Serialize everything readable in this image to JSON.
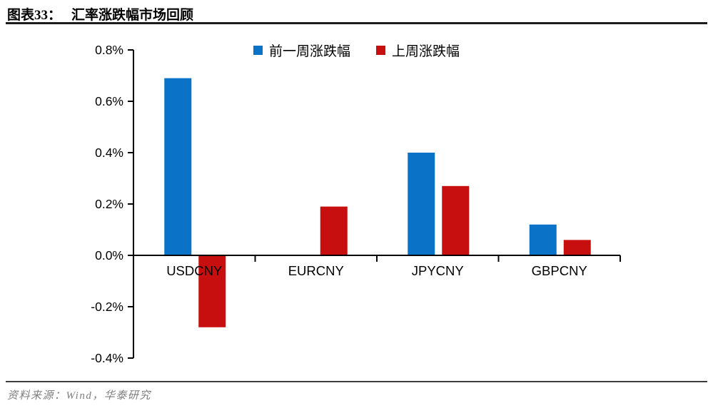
{
  "title": {
    "prefix": "图表33：",
    "text": "汇率涨跌幅市场回顾"
  },
  "footer": {
    "source": "资料来源：Wind，华泰研究"
  },
  "colors": {
    "series_blue": "#0a73c8",
    "series_red": "#c80f0f",
    "axis": "#000000",
    "title_rule": "#1c1c1c",
    "footer_rule": "#3d3d3d",
    "footer_text": "#7e7e7e"
  },
  "chart_data": {
    "type": "bar",
    "title": "汇率涨跌幅市场回顾",
    "categories": [
      "USDCNY",
      "EURCNY",
      "JPYCNY",
      "GBPCNY"
    ],
    "series": [
      {
        "name": "前一周涨跌幅",
        "color": "#0a73c8",
        "values": [
          0.69,
          0.0,
          0.4,
          0.12
        ]
      },
      {
        "name": "上周涨跌幅",
        "color": "#c80f0f",
        "values": [
          -0.28,
          0.19,
          0.27,
          0.06
        ]
      }
    ],
    "unit": "%",
    "xlabel": "",
    "ylabel": "",
    "ylim": [
      -0.4,
      0.8
    ],
    "y_ticks": [
      0.8,
      0.6,
      0.4,
      0.2,
      0.0,
      -0.2,
      -0.4
    ],
    "y_tick_labels": [
      "0.8%",
      "0.6%",
      "0.4%",
      "0.2%",
      "0.0%",
      "-0.2%",
      "-0.4%"
    ],
    "grid": false,
    "legend_position": "top-center"
  }
}
